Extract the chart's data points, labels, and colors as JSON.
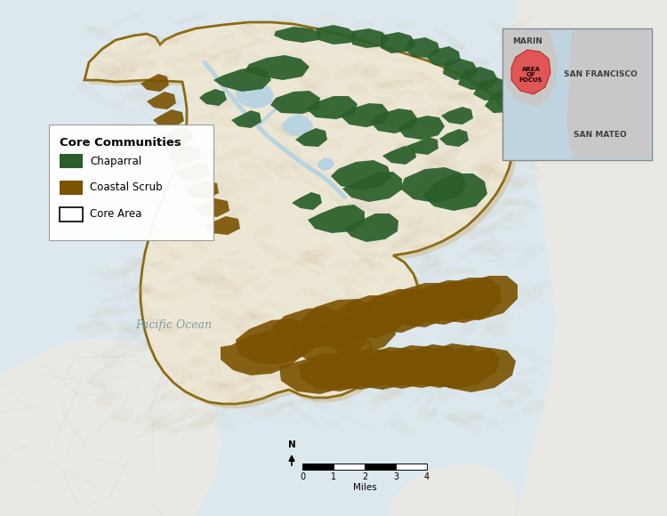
{
  "background_color": "#dce8ee",
  "outer_bg_color": "#dce8ee",
  "terrain_color": "#ece6d4",
  "terrain_inner": "#e8e0c8",
  "border_color": "#8B6A14",
  "border_shadow_color": "#c8a060",
  "chaparral_color": "#2a5e2a",
  "coastal_scrub_color": "#7a5200",
  "water_color": "#b8d4e0",
  "legend_title": "Core Communities",
  "legend_items": [
    "Chaparral",
    "Coastal Scrub",
    "Core Area"
  ],
  "scale_label": "Miles",
  "scale_ticks": [
    0,
    1,
    2,
    3,
    4
  ],
  "pacific_ocean_label": "Pacific Ocean",
  "inset_labels": [
    "MARIN",
    "SAN FRANCISCO",
    "SAN MATEO"
  ],
  "inset_area_label": "AREA\nOF\nFOCUS",
  "inset_bg": "#e0e0e0",
  "inset_water": "#c0d4e0",
  "inset_land": "#c8c8c8",
  "inset_focus_color": "#e05555",
  "outside_land_color": "#e8e8e4",
  "road_color": "#ffffff"
}
